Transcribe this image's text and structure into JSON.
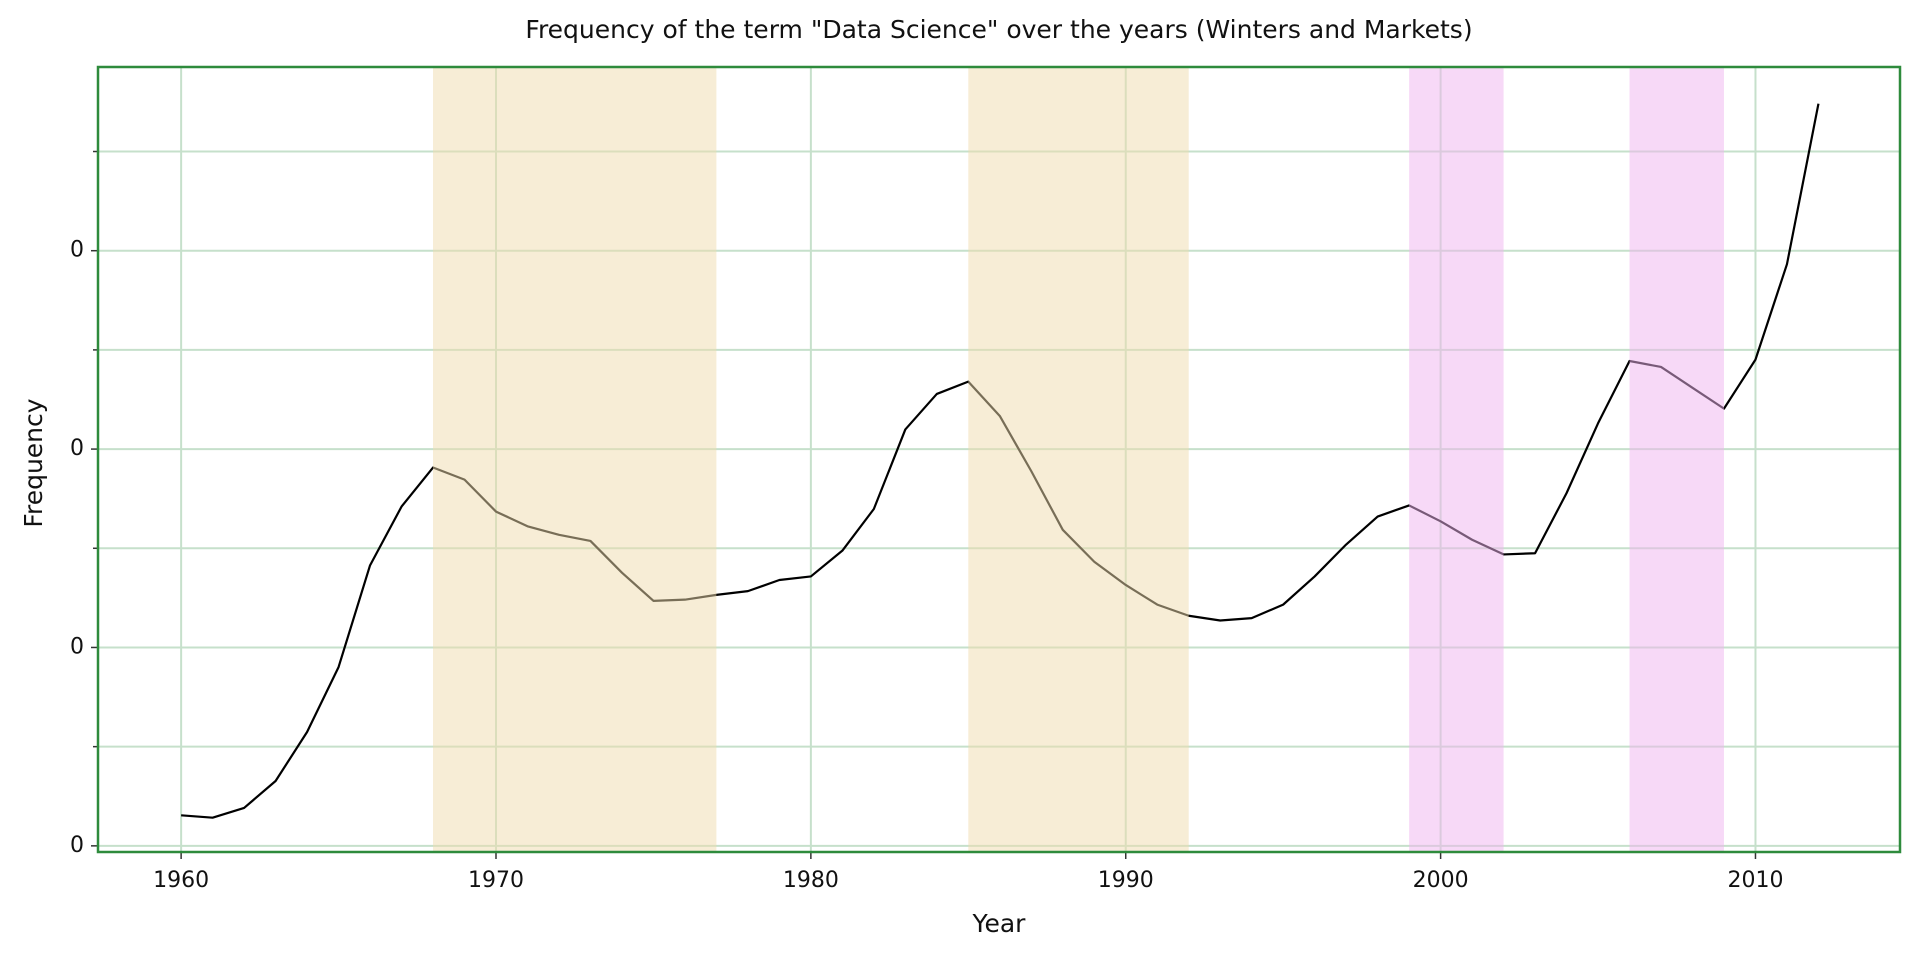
{
  "chart_data": {
    "type": "line",
    "title": "Frequency of the term \"Data Science\" over the years (Winters and Markets)",
    "x_label": "Year",
    "y_label": "Frequency",
    "x": [
      1960,
      1961,
      1962,
      1963,
      1964,
      1965,
      1966,
      1967,
      1968,
      1969,
      1970,
      1971,
      1972,
      1973,
      1974,
      1975,
      1976,
      1977,
      1978,
      1979,
      1980,
      1981,
      1982,
      1983,
      1984,
      1985,
      1986,
      1987,
      1988,
      1989,
      1990,
      1991,
      1992,
      1993,
      1994,
      1995,
      1996,
      1997,
      1998,
      1999,
      2000,
      2001,
      2002,
      2003,
      2004,
      2005,
      2006,
      2007,
      2008,
      2009,
      2010,
      2011,
      2012
    ],
    "values": [
      1.54e-07,
      1.42e-07,
      1.91e-07,
      3.27e-07,
      5.74e-07,
      9.01e-07,
      1.414e-06,
      1.71e-06,
      1.907e-06,
      1.846e-06,
      1.685e-06,
      1.611e-06,
      1.568e-06,
      1.537e-06,
      1.377e-06,
      1.235e-06,
      1.241e-06,
      1.265e-06,
      1.284e-06,
      1.34e-06,
      1.358e-06,
      1.488e-06,
      1.698e-06,
      2.099e-06,
      2.278e-06,
      2.34e-06,
      2.167e-06,
      1.889e-06,
      1.593e-06,
      1.432e-06,
      1.315e-06,
      1.216e-06,
      1.16e-06,
      1.136e-06,
      1.148e-06,
      1.216e-06,
      1.358e-06,
      1.519e-06,
      1.66e-06,
      1.716e-06,
      1.636e-06,
      1.543e-06,
      1.469e-06,
      1.475e-06,
      1.778e-06,
      2.13e-06,
      2.444e-06,
      2.414e-06,
      2.309e-06,
      2.204e-06,
      2.451e-06,
      2.932e-06,
      3.741e-06
    ],
    "color": "#000000",
    "spans": [
      {
        "start": 1968,
        "end": 1977,
        "color": "#f0dcae"
      },
      {
        "start": 1985,
        "end": 1992,
        "color": "#f0dcae"
      },
      {
        "start": 1999,
        "end": 2002,
        "color": "#f0b4f0"
      },
      {
        "start": 2006,
        "end": 2009,
        "color": "#f0b4f0"
      }
    ],
    "xlim": [
      1957.36,
      2014.59
    ],
    "xticks": [
      1960,
      1970,
      1980,
      1990,
      2000,
      2010
    ],
    "ylim": [
      -3.1e-08,
      3.926e-06
    ],
    "yticks": [
      {
        "value": 0,
        "label": "0"
      },
      {
        "value": 1e-06,
        "label": "0"
      },
      {
        "value": 2e-06,
        "label": "0"
      },
      {
        "value": 3e-06,
        "label": "0"
      }
    ],
    "minor_yticks": [
      5e-07,
      1.5e-06,
      2.5e-06,
      3.5e-06
    ],
    "grid": true,
    "frame_color": "#2e8b3c",
    "grid_color": "#c6e0cb"
  }
}
